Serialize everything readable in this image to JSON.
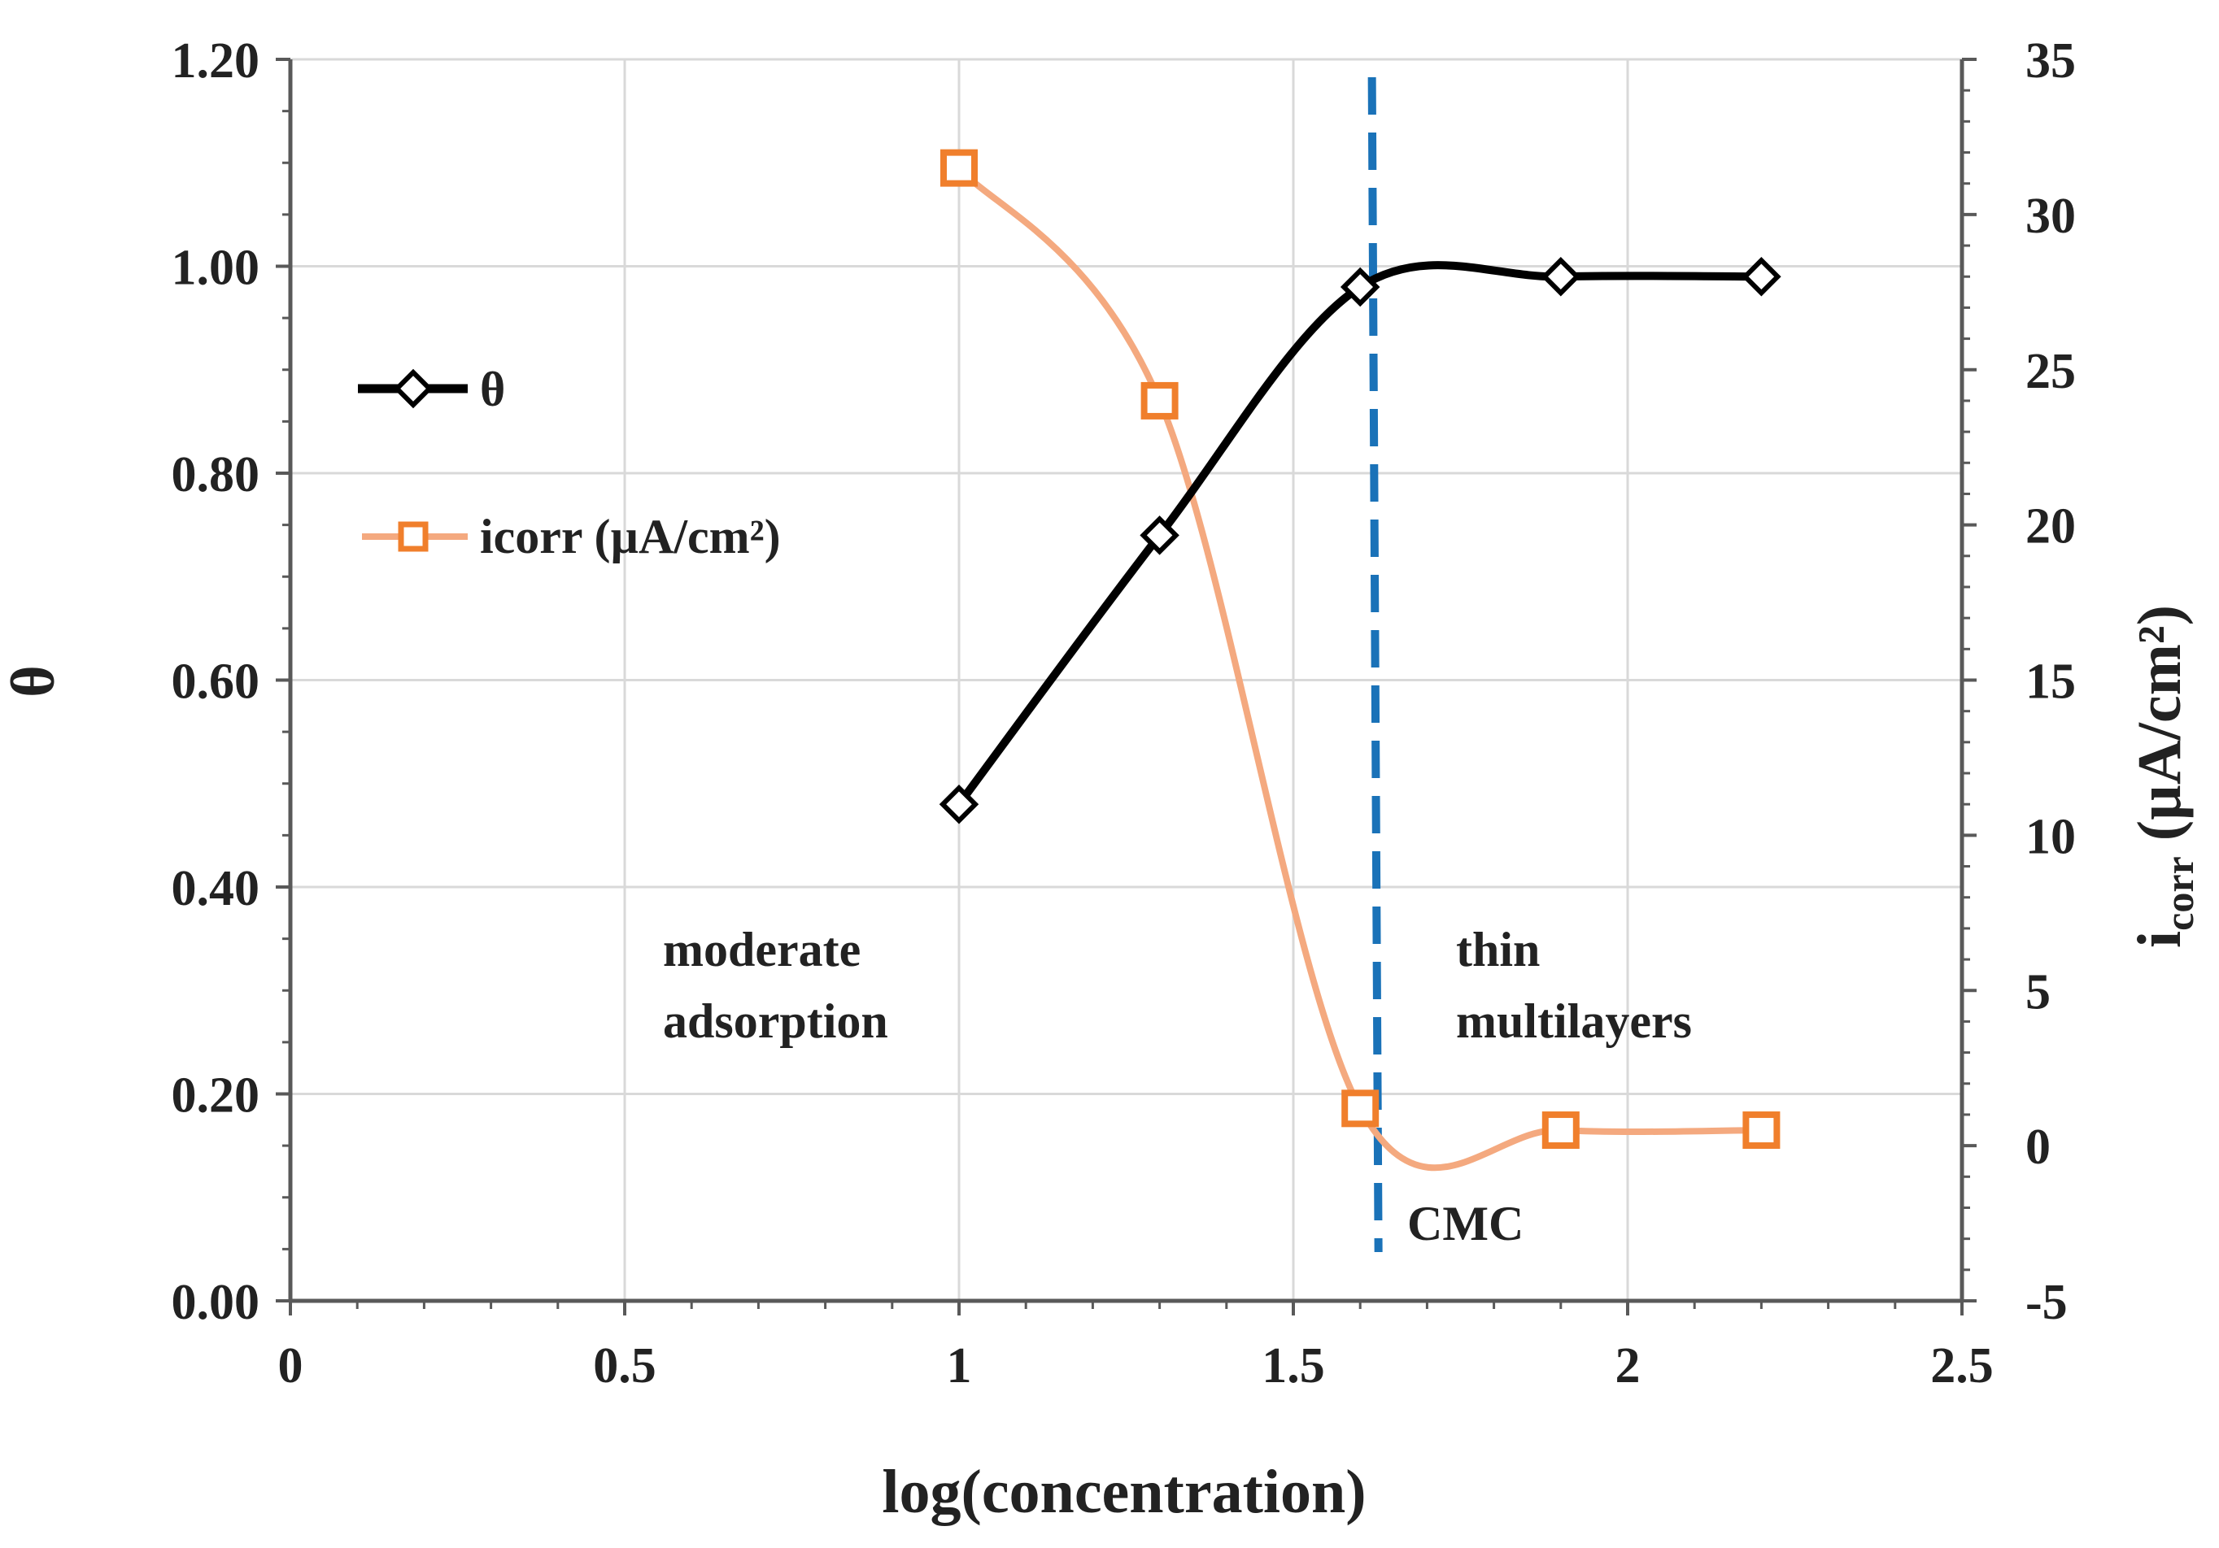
{
  "chart_data": {
    "type": "line",
    "title": "",
    "xlabel": "log(concentration)",
    "ylabel_left": "θ",
    "ylabel_right_main": "i",
    "ylabel_right_sub": "corr",
    "ylabel_right_unit": " (µA/cm²)",
    "xlim": [
      0,
      2.5
    ],
    "ylim_left": [
      0,
      1.2
    ],
    "ylim_right": [
      -5,
      35
    ],
    "x_ticks": [
      "0",
      "0.5",
      "1",
      "1.5",
      "2",
      "2.5"
    ],
    "y_left_ticks": [
      "0.00",
      "0.20",
      "0.40",
      "0.60",
      "0.80",
      "1.00",
      "1.20"
    ],
    "y_right_ticks": [
      "-5",
      "0",
      "5",
      "10",
      "15",
      "20",
      "25",
      "30",
      "35"
    ],
    "grid": true,
    "legend_position": "left",
    "series": [
      {
        "name": "θ",
        "axis": "left",
        "color": "#000000",
        "marker": "diamond",
        "x": [
          1.0,
          1.3,
          1.6,
          1.9,
          2.2
        ],
        "y": [
          0.48,
          0.74,
          0.98,
          0.99,
          0.99
        ]
      },
      {
        "name": "icorr (µA/cm²)",
        "axis": "right",
        "color": "#f4a97f",
        "marker_color": "#f07f2c",
        "marker": "square",
        "x": [
          1.0,
          1.3,
          1.6,
          1.9,
          2.2
        ],
        "y": [
          31.5,
          24.0,
          1.2,
          0.5,
          0.5
        ]
      }
    ],
    "vline": {
      "label": "CMC",
      "x": 1.62,
      "color": "#1a72b8"
    },
    "annotations": [
      {
        "id": "moderate",
        "lines": [
          "moderate",
          "adsorption"
        ]
      },
      {
        "id": "thin",
        "lines": [
          "thin",
          "multilayers"
        ]
      }
    ]
  }
}
